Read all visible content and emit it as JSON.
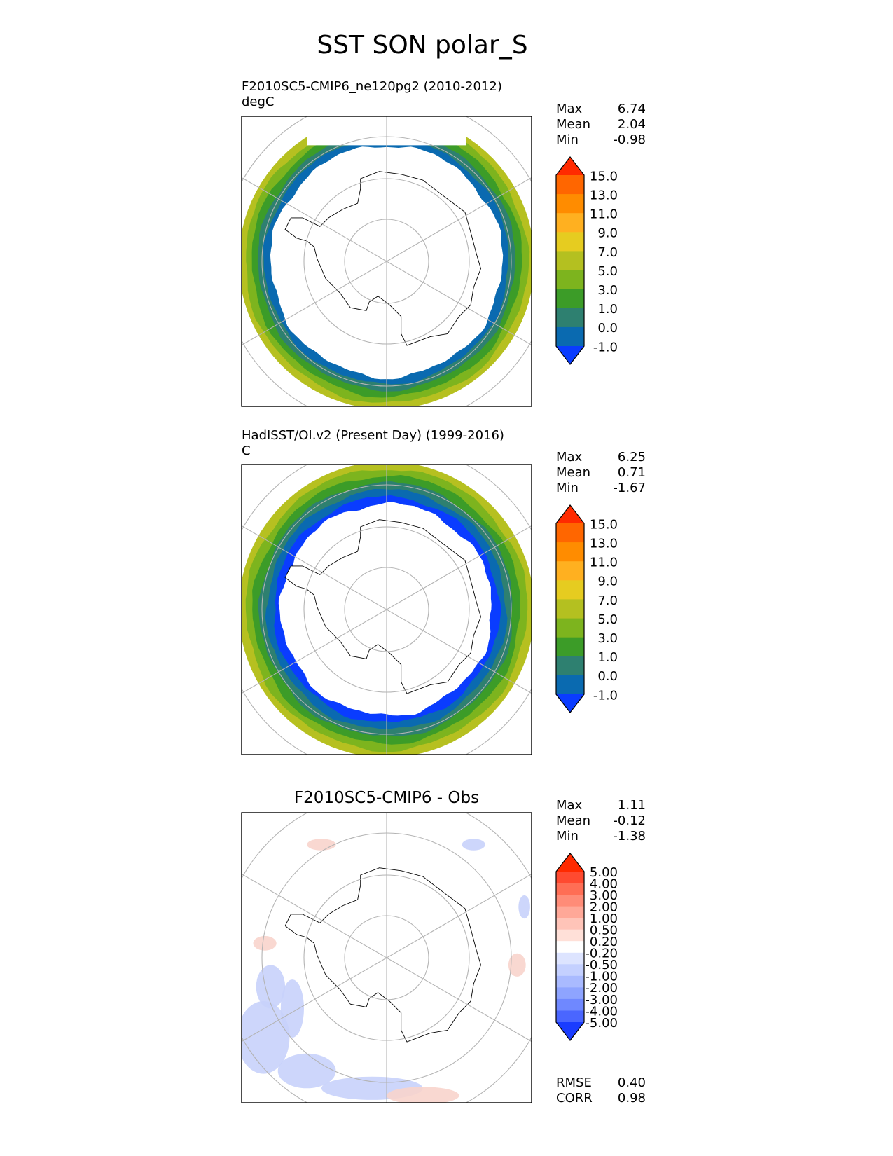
{
  "figure": {
    "title": "SST SON polar_S"
  },
  "chart_data": [
    {
      "type": "heatmap",
      "projection": "south polar stereographic",
      "title": "F2010SC5-CMIP6_ne120pg2 (2010-2012)",
      "units": "degC",
      "stats": {
        "max_label": "Max",
        "mean_label": "Mean",
        "min_label": "Min",
        "max": "6.74",
        "mean": "2.04",
        "min": "-0.98"
      },
      "colorbar": {
        "levels": [
          "15.0",
          "13.0",
          "11.0",
          "9.0",
          "7.0",
          "5.0",
          "3.0",
          "1.0",
          "0.0",
          "-1.0"
        ],
        "colors": [
          "#ff2a00",
          "#ff6600",
          "#ff8c00",
          "#ffb020",
          "#e6cc20",
          "#b4c020",
          "#7db41e",
          "#3c9c28",
          "#2e8070",
          "#0a6ab0",
          "#0a3cff"
        ]
      },
      "field": {
        "ring_colors": [
          "#b6c020",
          "#7db41e",
          "#3c9c28",
          "#2e8070",
          "#0a6ab0"
        ],
        "ice_edge": "model"
      }
    },
    {
      "type": "heatmap",
      "projection": "south polar stereographic",
      "title": "HadISST/OI.v2 (Present Day) (1999-2016)",
      "units": "C",
      "stats": {
        "max_label": "Max",
        "mean_label": "Mean",
        "min_label": "Min",
        "max": "6.25",
        "mean": "0.71",
        "min": "-1.67"
      },
      "colorbar": {
        "levels": [
          "15.0",
          "13.0",
          "11.0",
          "9.0",
          "7.0",
          "5.0",
          "3.0",
          "1.0",
          "0.0",
          "-1.0"
        ],
        "colors": [
          "#ff2a00",
          "#ff6600",
          "#ff8c00",
          "#ffb020",
          "#e6cc20",
          "#b4c020",
          "#7db41e",
          "#3c9c28",
          "#2e8070",
          "#0a6ab0",
          "#0a3cff"
        ]
      },
      "field": {
        "ring_colors": [
          "#b6c020",
          "#7db41e",
          "#3c9c28",
          "#2e8070",
          "#0a6ab0",
          "#0a3cff"
        ],
        "ice_edge": "obs"
      }
    },
    {
      "type": "heatmap",
      "projection": "south polar stereographic",
      "title": "F2010SC5-CMIP6 - Obs",
      "units": "",
      "stats": {
        "max_label": "Max",
        "mean_label": "Mean",
        "min_label": "Min",
        "max": "1.11",
        "mean": "-0.12",
        "min": "-1.38"
      },
      "colorbar": {
        "levels": [
          "5.00",
          "4.00",
          "3.00",
          "2.00",
          "1.00",
          "0.50",
          "0.20",
          "-0.20",
          "-0.50",
          "-1.00",
          "-2.00",
          "-3.00",
          "-4.00",
          "-5.00"
        ],
        "colors": [
          "#ff2a00",
          "#ff4a30",
          "#ff6e55",
          "#ff8c78",
          "#ffa898",
          "#ffc4b8",
          "#ffe0d8",
          "#ffffff",
          "#dde4ff",
          "#c4d0ff",
          "#a9baff",
          "#8ea4ff",
          "#6f88ff",
          "#4a66ff",
          "#1a3cff"
        ]
      },
      "metrics": {
        "rmse_label": "RMSE",
        "rmse": "0.40",
        "corr_label": "CORR",
        "corr": "0.98"
      },
      "field": {
        "ring_colors": [
          "#c8d2fb",
          "#f8d4cc"
        ],
        "ice_edge": "diff"
      }
    }
  ]
}
